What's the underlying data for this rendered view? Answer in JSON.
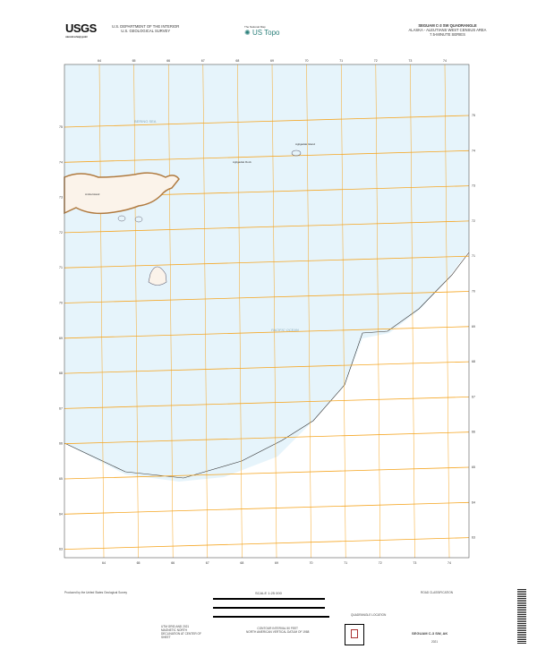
{
  "header": {
    "agency_logo": "USGS",
    "agency_tagline": "science for a changing world",
    "department": "U.S. DEPARTMENT OF THE INTERIOR",
    "survey": "U.S. GEOLOGICAL SURVEY",
    "product_logo": "US Topo",
    "product_tagline": "The National Map",
    "quad_title": "SEGUAM C-3 SW QUADRANGLE",
    "quad_area": "ALASKA - ALEUTIANS WEST CENSUS AREA",
    "series": "7.5-MINUTE SERIES"
  },
  "map": {
    "water_color": "#e6f4fb",
    "grid_color": "#f5a623",
    "top_ticks": [
      "64",
      "65",
      "66",
      "67",
      "68",
      "69",
      "70",
      "71",
      "72",
      "73",
      "74"
    ],
    "left_ticks": [
      "75",
      "74",
      "73",
      "72",
      "71",
      "70",
      "69",
      "68",
      "67",
      "66",
      "65",
      "64",
      "63"
    ],
    "water_labels": [
      "BERING SEA",
      "PACIFIC OCEAN"
    ],
    "feature_labels": [
      "Amlia Island",
      "Agligadak Rock",
      "Agligadak Island"
    ]
  },
  "footer": {
    "producer": "Produced by the United States Geological Survey",
    "scale": "SCALE 1:25 000",
    "scale_units": [
      "KILOMETERS",
      "METERS",
      "MILES",
      "FEET"
    ],
    "contour_note": "CONTOUR INTERVAL 50 FEET",
    "datum_note": "NORTH AMERICAN VERTICAL DATUM OF 1988",
    "declination_note": "UTM GRID AND 2021 MAGNETIC NORTH DECLINATION AT CENTER OF SHEET",
    "road_legend_title": "ROAD CLASSIFICATION",
    "quad_location": "QUADRANGLE LOCATION",
    "adjoining": "ADJOINING QUADRANGLES",
    "footer_title": "SEGUAM C-3 SW, AK",
    "year": "2021"
  }
}
